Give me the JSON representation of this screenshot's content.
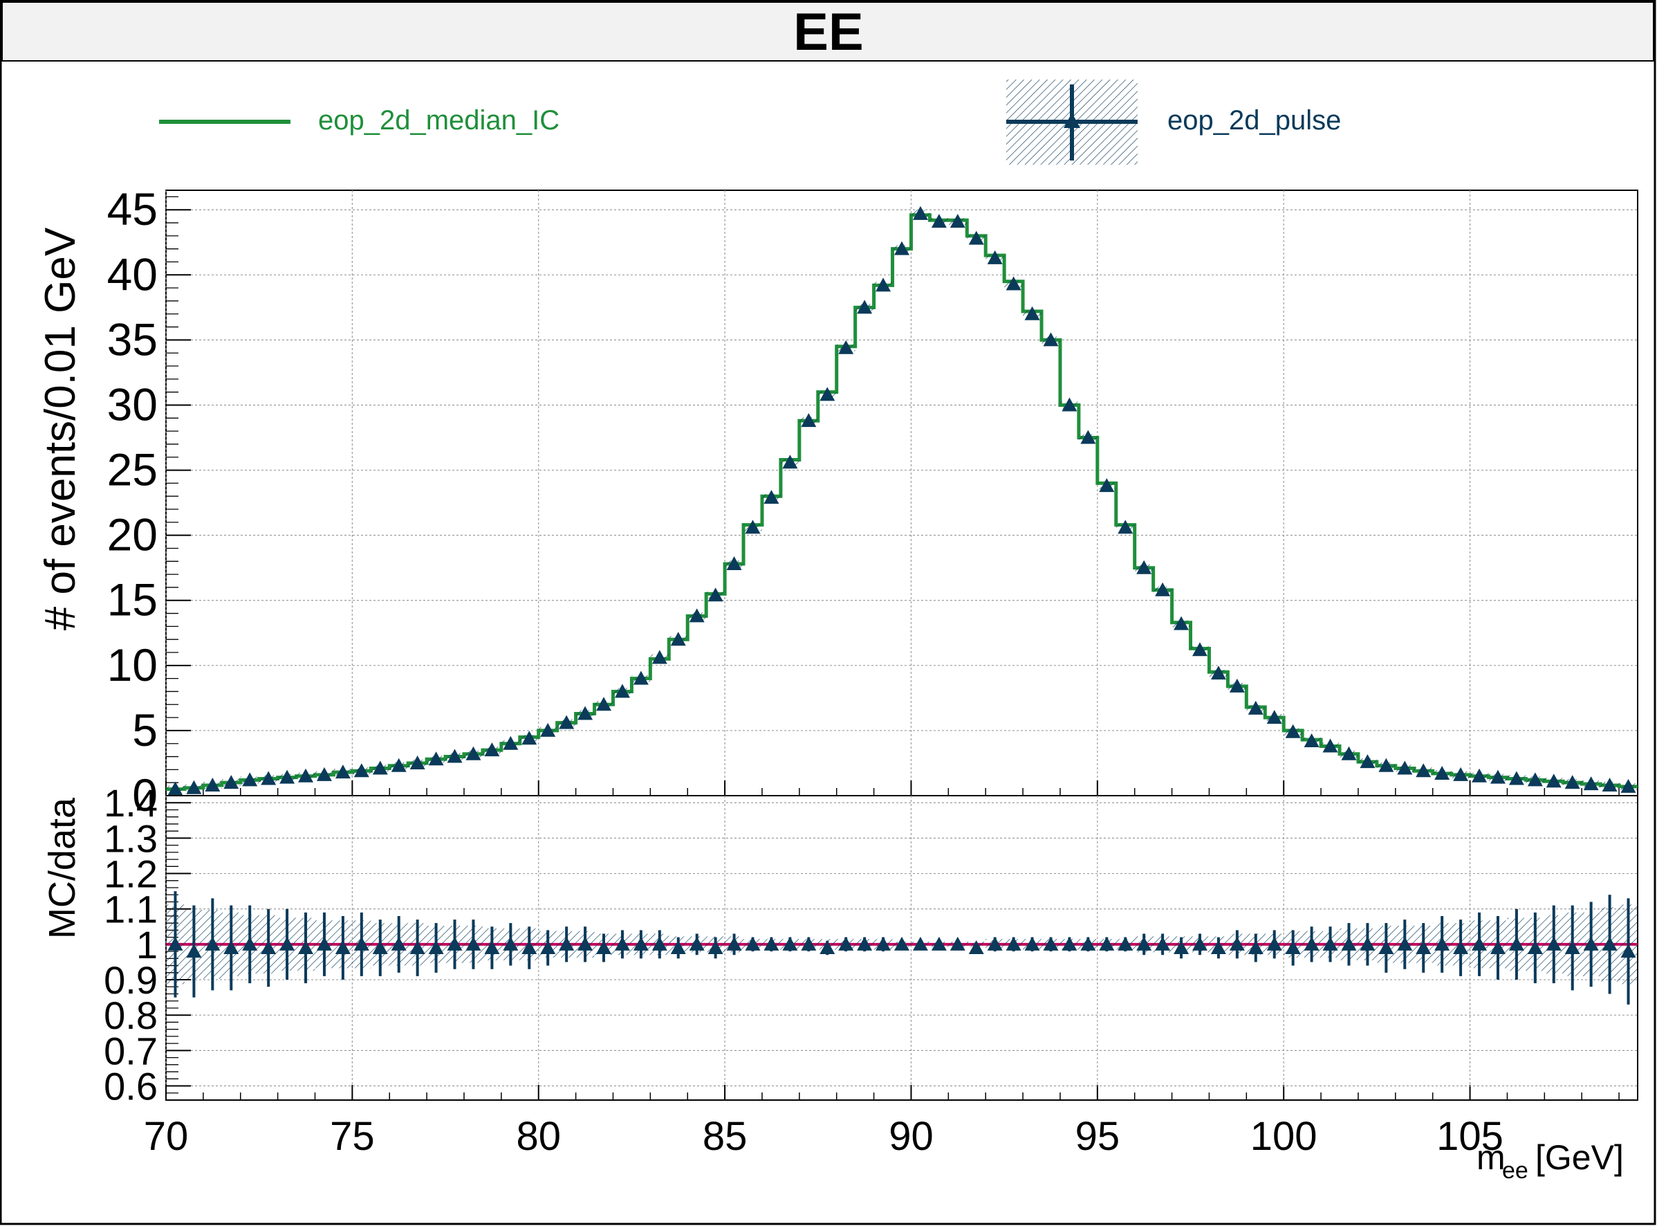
{
  "title": "EE",
  "legend": {
    "entries": [
      {
        "label": "eop_2d_median_IC",
        "color": "#1f8f3a",
        "style": "line"
      },
      {
        "label": "eop_2d_pulse",
        "color": "#0b3a5a",
        "style": "marker-with-band"
      }
    ]
  },
  "colors": {
    "median": "#1f8f3a",
    "pulse": "#0b3a5a",
    "ratio_ref": "#c4005a",
    "grid": "#9a9a9a"
  },
  "chart_data": [
    {
      "type": "line",
      "panel": "main",
      "ylabel": "# of events/0.01 GeV",
      "xlabel": "",
      "xlim": [
        70,
        109.5
      ],
      "ylim": [
        0,
        46.5
      ],
      "xticks": [
        "70",
        "75",
        "80",
        "85",
        "90",
        "95",
        "100",
        "105"
      ],
      "yticks": [
        "0",
        "5",
        "10",
        "15",
        "20",
        "25",
        "30",
        "35",
        "40",
        "45"
      ],
      "grid": true,
      "bin_width": 0.5,
      "x_start": 70,
      "series": [
        {
          "name": "eop_2d_median_IC",
          "style": "step",
          "values": [
            0.5,
            0.6,
            0.8,
            1.0,
            1.2,
            1.3,
            1.4,
            1.5,
            1.6,
            1.8,
            1.9,
            2.1,
            2.3,
            2.5,
            2.8,
            3.0,
            3.2,
            3.5,
            4.0,
            4.5,
            5.0,
            5.6,
            6.3,
            7.0,
            8.0,
            9.0,
            10.5,
            12.0,
            13.8,
            15.5,
            17.8,
            20.8,
            23.0,
            25.8,
            28.8,
            31.0,
            34.5,
            37.5,
            39.2,
            42.0,
            44.6,
            44.2,
            44.2,
            43.0,
            41.5,
            39.5,
            37.2,
            35.0,
            30.0,
            27.5,
            24.0,
            20.8,
            17.5,
            15.8,
            13.3,
            11.3,
            9.5,
            8.4,
            6.8,
            6.0,
            5.0,
            4.3,
            3.8,
            3.2,
            2.6,
            2.3,
            2.1,
            1.9,
            1.7,
            1.6,
            1.5,
            1.4,
            1.3,
            1.2,
            1.1,
            1.0,
            0.9,
            0.8,
            0.7
          ]
        },
        {
          "name": "eop_2d_pulse",
          "style": "markers",
          "values": [
            0.5,
            0.6,
            0.8,
            1.0,
            1.2,
            1.3,
            1.4,
            1.5,
            1.6,
            1.8,
            1.9,
            2.1,
            2.3,
            2.5,
            2.8,
            3.0,
            3.2,
            3.5,
            4.0,
            4.4,
            5.0,
            5.6,
            6.3,
            7.0,
            8.0,
            9.0,
            10.6,
            12.0,
            13.8,
            15.4,
            17.8,
            20.6,
            22.9,
            25.6,
            28.8,
            30.8,
            34.4,
            37.5,
            39.2,
            42.0,
            44.7,
            44.1,
            44.1,
            42.8,
            41.3,
            39.3,
            37.0,
            35.0,
            30.0,
            27.5,
            23.8,
            20.6,
            17.5,
            15.8,
            13.2,
            11.2,
            9.4,
            8.4,
            6.7,
            6.0,
            4.9,
            4.2,
            3.8,
            3.2,
            2.6,
            2.3,
            2.1,
            1.9,
            1.7,
            1.6,
            1.5,
            1.4,
            1.3,
            1.2,
            1.1,
            1.0,
            0.9,
            0.8,
            0.7
          ]
        }
      ]
    },
    {
      "type": "scatter",
      "panel": "ratio",
      "ylabel": "MC/data",
      "xlabel": "m_ee[GeV]",
      "xlim": [
        70,
        109.5
      ],
      "ylim": [
        0.56,
        1.42
      ],
      "xticks": [
        "70",
        "75",
        "80",
        "85",
        "90",
        "95",
        "100",
        "105"
      ],
      "yticks": [
        "0.6",
        "0.7",
        "0.8",
        "0.9",
        "1",
        "1.1",
        "1.2",
        "1.3",
        "1.4"
      ],
      "grid": true,
      "reference_line": 1.0,
      "series": [
        {
          "name": "eop_2d_pulse",
          "values": [
            1.0,
            0.98,
            1.0,
            0.99,
            1.0,
            0.99,
            1.0,
            0.99,
            1.0,
            0.99,
            1.0,
            0.99,
            1.0,
            0.99,
            0.99,
            1.0,
            1.0,
            0.99,
            1.0,
            0.99,
            0.99,
            1.0,
            1.0,
            0.99,
            1.0,
            1.0,
            1.0,
            0.99,
            1.0,
            0.99,
            1.0,
            1.0,
            1.0,
            1.0,
            1.0,
            0.99,
            1.0,
            1.0,
            1.0,
            1.0,
            1.0,
            1.0,
            1.0,
            0.99,
            1.0,
            1.0,
            1.0,
            1.0,
            1.0,
            1.0,
            1.0,
            1.0,
            1.0,
            1.0,
            0.99,
            1.0,
            0.99,
            1.0,
            0.99,
            1.0,
            0.99,
            1.0,
            1.0,
            1.0,
            1.0,
            0.99,
            1.0,
            0.99,
            1.0,
            0.99,
            1.0,
            0.99,
            1.0,
            0.99,
            1.0,
            0.99,
            1.0,
            1.0,
            0.98
          ],
          "errors": [
            0.15,
            0.13,
            0.13,
            0.12,
            0.11,
            0.11,
            0.1,
            0.1,
            0.09,
            0.09,
            0.09,
            0.08,
            0.08,
            0.08,
            0.07,
            0.07,
            0.07,
            0.06,
            0.06,
            0.06,
            0.05,
            0.05,
            0.05,
            0.04,
            0.04,
            0.04,
            0.04,
            0.03,
            0.03,
            0.03,
            0.03,
            0.02,
            0.02,
            0.02,
            0.02,
            0.02,
            0.02,
            0.02,
            0.02,
            0.01,
            0.01,
            0.01,
            0.01,
            0.01,
            0.02,
            0.02,
            0.02,
            0.02,
            0.02,
            0.02,
            0.02,
            0.02,
            0.03,
            0.03,
            0.03,
            0.03,
            0.03,
            0.04,
            0.04,
            0.04,
            0.05,
            0.05,
            0.05,
            0.06,
            0.06,
            0.07,
            0.07,
            0.07,
            0.08,
            0.08,
            0.09,
            0.09,
            0.1,
            0.1,
            0.11,
            0.12,
            0.12,
            0.14,
            0.15
          ]
        }
      ]
    }
  ],
  "axis_label_x_main": "m",
  "axis_label_x_sub": "ee",
  "axis_label_x_unit": "[GeV]"
}
